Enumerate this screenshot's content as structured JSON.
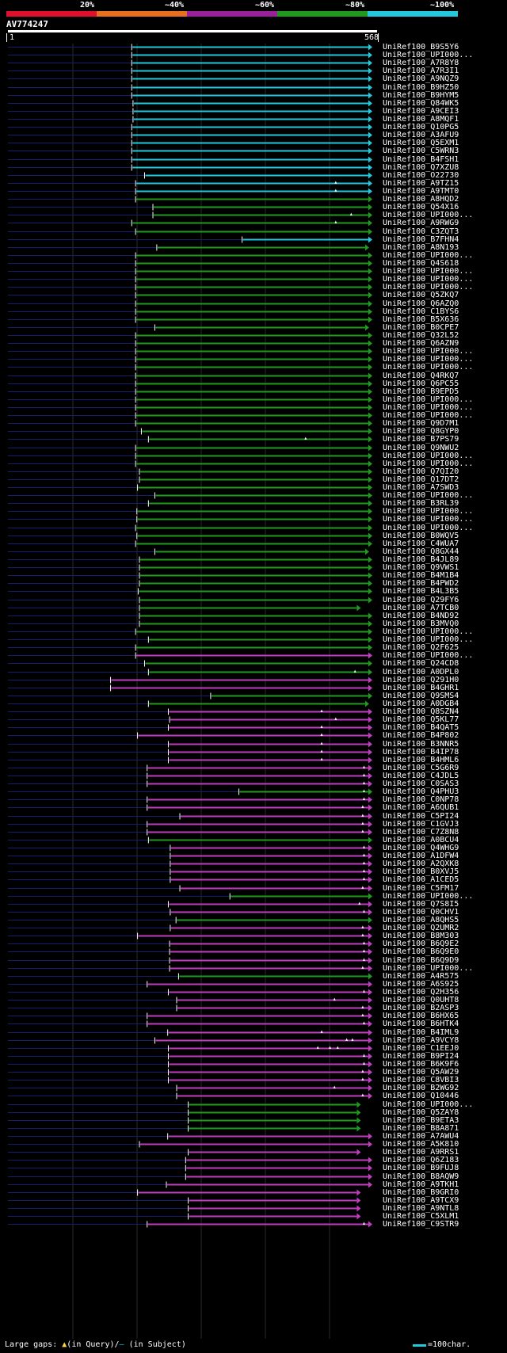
{
  "identity_scale": {
    "labels": [
      "20%",
      "~40%",
      "~60%",
      "~80%",
      "~100%"
    ],
    "colors": [
      "#e0102c",
      "#e77020",
      "#9a1f9a",
      "#1f9a1f",
      "#22c8dc"
    ]
  },
  "query": {
    "id": "AV774247",
    "start": "1",
    "end": "568",
    "length": 568
  },
  "legend": {
    "prefix": "Large gaps:",
    "in_query": "(in Query)/",
    "in_subject": "(in Subject)",
    "query_gap_marker": "▲",
    "subject_gap_marker": "—",
    "scale_text": "=100char."
  },
  "hits": [
    {
      "id": "UniRef100_B9S5Y6",
      "s": 193,
      "e": 568,
      "c": "cyan",
      "arrow": true
    },
    {
      "id": "UniRef100_UPI000...",
      "s": 193,
      "e": 568,
      "c": "cyan",
      "arrow": true
    },
    {
      "id": "UniRef100_A7R8Y8",
      "s": 193,
      "e": 568,
      "c": "cyan",
      "arrow": true
    },
    {
      "id": "UniRef100_A7R3I1",
      "s": 193,
      "e": 568,
      "c": "cyan",
      "arrow": true
    },
    {
      "id": "UniRef100_A9NQZ9",
      "s": 193,
      "e": 568,
      "c": "cyan",
      "arrow": true
    },
    {
      "id": "UniRef100_B9HZ50",
      "s": 193,
      "e": 568,
      "c": "cyan",
      "arrow": true
    },
    {
      "id": "UniRef100_B9HYM5",
      "s": 193,
      "e": 568,
      "c": "cyan",
      "arrow": true
    },
    {
      "id": "UniRef100_Q84WK5",
      "s": 195,
      "e": 568,
      "c": "cyan",
      "arrow": true
    },
    {
      "id": "UniRef100_A9CEI3",
      "s": 195,
      "e": 568,
      "c": "cyan",
      "arrow": true
    },
    {
      "id": "UniRef100_A8MQF1",
      "s": 195,
      "e": 568,
      "c": "cyan",
      "arrow": true
    },
    {
      "id": "UniRef100_Q10PG5",
      "s": 193,
      "e": 568,
      "c": "cyan",
      "arrow": true
    },
    {
      "id": "UniRef100_A3AFU9",
      "s": 193,
      "e": 568,
      "c": "cyan",
      "arrow": true
    },
    {
      "id": "UniRef100_Q5EXM1",
      "s": 193,
      "e": 568,
      "c": "cyan",
      "arrow": true
    },
    {
      "id": "UniRef100_C5WRN3",
      "s": 193,
      "e": 568,
      "c": "cyan",
      "arrow": true
    },
    {
      "id": "UniRef100_B4FSH1",
      "s": 193,
      "e": 568,
      "c": "cyan",
      "arrow": true
    },
    {
      "id": "UniRef100_Q7XZU8",
      "s": 193,
      "e": 568,
      "c": "cyan",
      "arrow": true
    },
    {
      "id": "UniRef100_O22730",
      "s": 213,
      "e": 568,
      "c": "cyan",
      "arrow": true
    },
    {
      "id": "UniRef100_A9TZ15",
      "s": 199,
      "e": 568,
      "c": "cyan",
      "arrow": true,
      "gaps": [
        511
      ]
    },
    {
      "id": "UniRef100_A9TMT0",
      "s": 199,
      "e": 568,
      "c": "cyan",
      "arrow": true,
      "gaps": [
        511
      ]
    },
    {
      "id": "UniRef100_A8HQD2",
      "s": 199,
      "e": 568,
      "c": "green",
      "arrow": true
    },
    {
      "id": "UniRef100_Q54X16",
      "s": 226,
      "e": 568,
      "c": "green",
      "arrow": true
    },
    {
      "id": "UniRef100_UPI000...",
      "s": 226,
      "e": 568,
      "c": "green",
      "arrow": true,
      "gaps": [
        535
      ]
    },
    {
      "id": "UniRef100_A9RWG9",
      "s": 193,
      "e": 568,
      "c": "green",
      "arrow": true,
      "gaps": [
        511
      ]
    },
    {
      "id": "UniRef100_C3ZQT3",
      "s": 199,
      "e": 568,
      "c": "green",
      "arrow": true
    },
    {
      "id": "UniRef100_B7FHN4",
      "s": 365,
      "e": 568,
      "c": "cyan",
      "arrow": true
    },
    {
      "id": "UniRef100_A8N193",
      "s": 232,
      "e": 563,
      "c": "green",
      "arrow": true
    },
    {
      "id": "UniRef100_UPI000...",
      "s": 199,
      "e": 568,
      "c": "green",
      "arrow": true
    },
    {
      "id": "UniRef100_Q4S618",
      "s": 199,
      "e": 568,
      "c": "green",
      "arrow": true
    },
    {
      "id": "UniRef100_UPI000...",
      "s": 199,
      "e": 568,
      "c": "green",
      "arrow": true
    },
    {
      "id": "UniRef100_UPI000...",
      "s": 199,
      "e": 568,
      "c": "green",
      "arrow": true
    },
    {
      "id": "UniRef100_UPI000...",
      "s": 199,
      "e": 568,
      "c": "green",
      "arrow": true
    },
    {
      "id": "UniRef100_Q5ZKQ7",
      "s": 199,
      "e": 568,
      "c": "green",
      "arrow": true
    },
    {
      "id": "UniRef100_Q6AZQ0",
      "s": 199,
      "e": 568,
      "c": "green",
      "arrow": true
    },
    {
      "id": "UniRef100_C1BYS6",
      "s": 199,
      "e": 568,
      "c": "green",
      "arrow": true
    },
    {
      "id": "UniRef100_B5X636",
      "s": 199,
      "e": 568,
      "c": "green",
      "arrow": true
    },
    {
      "id": "UniRef100_B0CPE7",
      "s": 229,
      "e": 563,
      "c": "green",
      "arrow": true
    },
    {
      "id": "UniRef100_Q32L52",
      "s": 199,
      "e": 568,
      "c": "green",
      "arrow": true
    },
    {
      "id": "UniRef100_Q6AZN9",
      "s": 199,
      "e": 568,
      "c": "green",
      "arrow": true
    },
    {
      "id": "UniRef100_UPI000...",
      "s": 199,
      "e": 568,
      "c": "green",
      "arrow": true
    },
    {
      "id": "UniRef100_UPI000...",
      "s": 199,
      "e": 568,
      "c": "green",
      "arrow": true
    },
    {
      "id": "UniRef100_UPI000...",
      "s": 199,
      "e": 568,
      "c": "green",
      "arrow": true
    },
    {
      "id": "UniRef100_Q4RKQ7",
      "s": 199,
      "e": 568,
      "c": "green",
      "arrow": true
    },
    {
      "id": "UniRef100_Q6PC55",
      "s": 199,
      "e": 568,
      "c": "green",
      "arrow": true
    },
    {
      "id": "UniRef100_B9EPD5",
      "s": 199,
      "e": 568,
      "c": "green",
      "arrow": true
    },
    {
      "id": "UniRef100_UPI000...",
      "s": 199,
      "e": 568,
      "c": "green",
      "arrow": true
    },
    {
      "id": "UniRef100_UPI000...",
      "s": 199,
      "e": 568,
      "c": "green",
      "arrow": true
    },
    {
      "id": "UniRef100_UPI000...",
      "s": 199,
      "e": 568,
      "c": "green",
      "arrow": true
    },
    {
      "id": "UniRef100_Q9D7M1",
      "s": 199,
      "e": 568,
      "c": "green",
      "arrow": true
    },
    {
      "id": "UniRef100_Q8GYP0",
      "s": 208,
      "e": 568,
      "c": "green",
      "arrow": true
    },
    {
      "id": "UniRef100_B7PS79",
      "s": 219,
      "e": 568,
      "c": "green",
      "arrow": true,
      "gaps": [
        464
      ]
    },
    {
      "id": "UniRef100_Q9NWU2",
      "s": 199,
      "e": 568,
      "c": "green",
      "arrow": true
    },
    {
      "id": "UniRef100_UPI000...",
      "s": 199,
      "e": 568,
      "c": "green",
      "arrow": true
    },
    {
      "id": "UniRef100_UPI000...",
      "s": 199,
      "e": 568,
      "c": "green",
      "arrow": true
    },
    {
      "id": "UniRef100_Q7QI20",
      "s": 205,
      "e": 568,
      "c": "green",
      "arrow": true
    },
    {
      "id": "UniRef100_Q17DT2",
      "s": 205,
      "e": 568,
      "c": "green",
      "arrow": true
    },
    {
      "id": "UniRef100_A7SWD3",
      "s": 202,
      "e": 568,
      "c": "green",
      "arrow": true
    },
    {
      "id": "UniRef100_UPI000...",
      "s": 229,
      "e": 568,
      "c": "green",
      "arrow": true
    },
    {
      "id": "UniRef100_B3RL39",
      "s": 219,
      "e": 568,
      "c": "green",
      "arrow": true
    },
    {
      "id": "UniRef100_UPI000...",
      "s": 201,
      "e": 568,
      "c": "green",
      "arrow": true
    },
    {
      "id": "UniRef100_UPI000...",
      "s": 201,
      "e": 568,
      "c": "green",
      "arrow": true
    },
    {
      "id": "UniRef100_UPI000...",
      "s": 199,
      "e": 568,
      "c": "green",
      "arrow": true
    },
    {
      "id": "UniRef100_B0WQV5",
      "s": 201,
      "e": 568,
      "c": "green",
      "arrow": true
    },
    {
      "id": "UniRef100_C4WUA7",
      "s": 199,
      "e": 568,
      "c": "green",
      "arrow": true
    },
    {
      "id": "UniRef100_Q8GX44",
      "s": 229,
      "e": 563,
      "c": "green",
      "arrow": true
    },
    {
      "id": "UniRef100_B4JL89",
      "s": 205,
      "e": 568,
      "c": "green",
      "arrow": true
    },
    {
      "id": "UniRef100_Q9VWS1",
      "s": 205,
      "e": 568,
      "c": "green",
      "arrow": true
    },
    {
      "id": "UniRef100_B4M1B4",
      "s": 205,
      "e": 568,
      "c": "green",
      "arrow": true
    },
    {
      "id": "UniRef100_B4PWD2",
      "s": 205,
      "e": 568,
      "c": "green",
      "arrow": true
    },
    {
      "id": "UniRef100_B4L3B5",
      "s": 203,
      "e": 568,
      "c": "green",
      "arrow": true
    },
    {
      "id": "UniRef100_Q29FY6",
      "s": 205,
      "e": 568,
      "c": "green",
      "arrow": true
    },
    {
      "id": "UniRef100_A7TCB0",
      "s": 205,
      "e": 550,
      "c": "green",
      "arrow": true
    },
    {
      "id": "UniRef100_B4ND92",
      "s": 205,
      "e": 568,
      "c": "green",
      "arrow": true
    },
    {
      "id": "UniRef100_B3MVQ0",
      "s": 205,
      "e": 568,
      "c": "green",
      "arrow": true
    },
    {
      "id": "UniRef100_UPI000...",
      "s": 199,
      "e": 568,
      "c": "green",
      "arrow": true
    },
    {
      "id": "UniRef100_UPI000...",
      "s": 219,
      "e": 568,
      "c": "green",
      "arrow": true
    },
    {
      "id": "UniRef100_Q2F625",
      "s": 199,
      "e": 568,
      "c": "green",
      "arrow": true
    },
    {
      "id": "UniRef100_UPI000...",
      "s": 199,
      "e": 568,
      "c": "magenta",
      "arrow": true
    },
    {
      "id": "UniRef100_Q24CD8",
      "s": 213,
      "e": 568,
      "c": "green",
      "arrow": true
    },
    {
      "id": "UniRef100_A0DPL0",
      "s": 219,
      "e": 568,
      "c": "green",
      "arrow": true,
      "gaps": [
        541
      ]
    },
    {
      "id": "UniRef100_Q291H0",
      "s": 160,
      "e": 568,
      "c": "magenta",
      "arrow": true
    },
    {
      "id": "UniRef100_B4GHR1",
      "s": 160,
      "e": 568,
      "c": "magenta",
      "arrow": true
    },
    {
      "id": "UniRef100_Q9SMS4",
      "s": 316,
      "e": 568,
      "c": "green",
      "arrow": true
    },
    {
      "id": "UniRef100_A0DGB4",
      "s": 219,
      "e": 563,
      "c": "green",
      "arrow": true
    },
    {
      "id": "UniRef100_Q8SZN4",
      "s": 250,
      "e": 568,
      "c": "magenta",
      "arrow": true,
      "gaps": [
        489
      ]
    },
    {
      "id": "UniRef100_Q5KL77",
      "s": 252,
      "e": 568,
      "c": "magenta",
      "arrow": true,
      "gaps": [
        511
      ]
    },
    {
      "id": "UniRef100_B4QAT5",
      "s": 250,
      "e": 568,
      "c": "magenta",
      "arrow": true,
      "gaps": [
        489
      ]
    },
    {
      "id": "UniRef100_B4P802",
      "s": 202,
      "e": 568,
      "c": "magenta",
      "arrow": true,
      "gaps": [
        489
      ]
    },
    {
      "id": "UniRef100_B3NNR5",
      "s": 250,
      "e": 568,
      "c": "magenta",
      "arrow": true,
      "gaps": [
        489
      ]
    },
    {
      "id": "UniRef100_B4IP78",
      "s": 250,
      "e": 568,
      "c": "magenta",
      "arrow": true,
      "gaps": [
        489
      ]
    },
    {
      "id": "UniRef100_B4HML6",
      "s": 250,
      "e": 568,
      "c": "magenta",
      "arrow": true,
      "gaps": [
        489
      ]
    },
    {
      "id": "UniRef100_C5G6R9",
      "s": 217,
      "e": 568,
      "c": "magenta",
      "arrow": true,
      "gaps": [
        555
      ]
    },
    {
      "id": "UniRef100_C4JDL5",
      "s": 217,
      "e": 568,
      "c": "magenta",
      "arrow": true,
      "gaps": [
        555
      ]
    },
    {
      "id": "UniRef100_C0SAS3",
      "s": 217,
      "e": 568,
      "c": "magenta",
      "arrow": true,
      "gaps": [
        555
      ]
    },
    {
      "id": "UniRef100_Q4PHU3",
      "s": 360,
      "e": 568,
      "c": "green",
      "arrow": true,
      "gaps": [
        555
      ]
    },
    {
      "id": "UniRef100_C0NP78",
      "s": 217,
      "e": 568,
      "c": "magenta",
      "arrow": true,
      "gaps": [
        555
      ]
    },
    {
      "id": "UniRef100_A6QUB1",
      "s": 217,
      "e": 568,
      "c": "magenta",
      "arrow": true,
      "gaps": [
        553
      ]
    },
    {
      "id": "UniRef100_C5PI24",
      "s": 268,
      "e": 568,
      "c": "magenta",
      "arrow": true,
      "gaps": [
        553
      ]
    },
    {
      "id": "UniRef100_C1GVJ3",
      "s": 217,
      "e": 568,
      "c": "magenta",
      "arrow": true,
      "gaps": [
        553
      ]
    },
    {
      "id": "UniRef100_C7Z8N8",
      "s": 217,
      "e": 568,
      "c": "magenta",
      "arrow": true,
      "gaps": [
        553
      ]
    },
    {
      "id": "UniRef100_A0BCU4",
      "s": 219,
      "e": 568,
      "c": "green",
      "arrow": true
    },
    {
      "id": "UniRef100_Q4WHG9",
      "s": 253,
      "e": 568,
      "c": "magenta",
      "arrow": true,
      "gaps": [
        555
      ]
    },
    {
      "id": "UniRef100_A1DFW4",
      "s": 253,
      "e": 568,
      "c": "magenta",
      "arrow": true,
      "gaps": [
        555
      ]
    },
    {
      "id": "UniRef100_A2QXK8",
      "s": 253,
      "e": 568,
      "c": "magenta",
      "arrow": true,
      "gaps": [
        555
      ]
    },
    {
      "id": "UniRef100_B0XVJ5",
      "s": 253,
      "e": 568,
      "c": "magenta",
      "arrow": true,
      "gaps": [
        555
      ]
    },
    {
      "id": "UniRef100_A1CED5",
      "s": 253,
      "e": 568,
      "c": "magenta",
      "arrow": true,
      "gaps": [
        555
      ]
    },
    {
      "id": "UniRef100_C5FM17",
      "s": 268,
      "e": 568,
      "c": "magenta",
      "arrow": true,
      "gaps": [
        553
      ]
    },
    {
      "id": "UniRef100_UPI000...",
      "s": 346,
      "e": 568,
      "c": "green",
      "arrow": true
    },
    {
      "id": "UniRef100_Q7S8I5",
      "s": 250,
      "e": 568,
      "c": "magenta",
      "arrow": true,
      "gaps": [
        548
      ]
    },
    {
      "id": "UniRef100_Q0CHV1",
      "s": 253,
      "e": 568,
      "c": "magenta",
      "arrow": true,
      "gaps": [
        555
      ]
    },
    {
      "id": "UniRef100_A8QHS5",
      "s": 262,
      "e": 568,
      "c": "green",
      "arrow": true
    },
    {
      "id": "UniRef100_Q2UMR2",
      "s": 253,
      "e": 568,
      "c": "magenta",
      "arrow": true,
      "gaps": [
        553
      ]
    },
    {
      "id": "UniRef100_B8M303",
      "s": 202,
      "e": 568,
      "c": "magenta",
      "arrow": true,
      "gaps": [
        553
      ]
    },
    {
      "id": "UniRef100_B6Q9E2",
      "s": 252,
      "e": 568,
      "c": "magenta",
      "arrow": true,
      "gaps": [
        555
      ]
    },
    {
      "id": "UniRef100_B6Q9E0",
      "s": 252,
      "e": 568,
      "c": "magenta",
      "arrow": true,
      "gaps": [
        555
      ]
    },
    {
      "id": "UniRef100_B6Q9D9",
      "s": 252,
      "e": 568,
      "c": "magenta",
      "arrow": true,
      "gaps": [
        555
      ]
    },
    {
      "id": "UniRef100_UPI000...",
      "s": 252,
      "e": 568,
      "c": "magenta",
      "arrow": true,
      "gaps": [
        553
      ]
    },
    {
      "id": "UniRef100_A4R575",
      "s": 266,
      "e": 568,
      "c": "green",
      "arrow": true
    },
    {
      "id": "UniRef100_A6S925",
      "s": 217,
      "e": 568,
      "c": "magenta",
      "arrow": true
    },
    {
      "id": "UniRef100_Q2H356",
      "s": 250,
      "e": 568,
      "c": "magenta",
      "arrow": true,
      "gaps": [
        555
      ]
    },
    {
      "id": "UniRef100_Q0UHT8",
      "s": 263,
      "e": 568,
      "c": "magenta",
      "arrow": true,
      "gaps": [
        509
      ]
    },
    {
      "id": "UniRef100_B2ASP3",
      "s": 263,
      "e": 568,
      "c": "magenta",
      "arrow": true,
      "gaps": [
        553
      ]
    },
    {
      "id": "UniRef100_B6HX65",
      "s": 217,
      "e": 568,
      "c": "magenta",
      "arrow": true,
      "gaps": [
        553
      ]
    },
    {
      "id": "UniRef100_B6HTK4",
      "s": 217,
      "e": 568,
      "c": "magenta",
      "arrow": true,
      "gaps": [
        555
      ]
    },
    {
      "id": "UniRef100_B4IML9",
      "s": 249,
      "e": 568,
      "c": "magenta",
      "arrow": true,
      "gaps": [
        489
      ]
    },
    {
      "id": "UniRef100_A9VCY8",
      "s": 229,
      "e": 568,
      "c": "magenta",
      "arrow": true,
      "gaps": [
        528,
        537
      ]
    },
    {
      "id": "UniRef100_C1EEJ0",
      "s": 250,
      "e": 568,
      "c": "magenta",
      "arrow": true,
      "gaps": [
        483,
        502,
        514
      ]
    },
    {
      "id": "UniRef100_B9PI24",
      "s": 250,
      "e": 568,
      "c": "magenta",
      "arrow": true,
      "gaps": [
        555
      ]
    },
    {
      "id": "UniRef100_B6K9F6",
      "s": 250,
      "e": 568,
      "c": "magenta",
      "arrow": true,
      "gaps": [
        555
      ]
    },
    {
      "id": "UniRef100_Q5AW29",
      "s": 250,
      "e": 568,
      "c": "magenta",
      "arrow": true,
      "gaps": [
        553
      ]
    },
    {
      "id": "UniRef100_C8VBI3",
      "s": 250,
      "e": 568,
      "c": "magenta",
      "arrow": true,
      "gaps": [
        553
      ]
    },
    {
      "id": "UniRef100_B2WG92",
      "s": 263,
      "e": 568,
      "c": "magenta",
      "arrow": true,
      "gaps": [
        509
      ]
    },
    {
      "id": "UniRef100_Q10446",
      "s": 263,
      "e": 568,
      "c": "magenta",
      "arrow": true,
      "gaps": [
        553
      ]
    },
    {
      "id": "UniRef100_UPI000...",
      "s": 281,
      "e": 550,
      "c": "green",
      "arrow": true
    },
    {
      "id": "UniRef100_Q5ZAY8",
      "s": 281,
      "e": 550,
      "c": "green",
      "arrow": true
    },
    {
      "id": "UniRef100_B9ETA3",
      "s": 281,
      "e": 550,
      "c": "green",
      "arrow": true
    },
    {
      "id": "UniRef100_B8A871",
      "s": 281,
      "e": 550,
      "c": "green",
      "arrow": true
    },
    {
      "id": "UniRef100_A7AWU4",
      "s": 249,
      "e": 568,
      "c": "magenta",
      "arrow": true
    },
    {
      "id": "UniRef100_A5K810",
      "s": 205,
      "e": 568,
      "c": "magenta",
      "arrow": true
    },
    {
      "id": "UniRef100_A9RRS1",
      "s": 281,
      "e": 550,
      "c": "magenta",
      "arrow": true
    },
    {
      "id": "UniRef100_Q6Z183",
      "s": 277,
      "e": 568,
      "c": "magenta",
      "arrow": true
    },
    {
      "id": "UniRef100_B9FUJ8",
      "s": 277,
      "e": 568,
      "c": "magenta",
      "arrow": true
    },
    {
      "id": "UniRef100_B8AQW9",
      "s": 277,
      "e": 568,
      "c": "magenta",
      "arrow": true
    },
    {
      "id": "UniRef100_A9TKH1",
      "s": 247,
      "e": 568,
      "c": "magenta",
      "arrow": true
    },
    {
      "id": "UniRef100_B9GRI0",
      "s": 202,
      "e": 550,
      "c": "magenta",
      "arrow": true
    },
    {
      "id": "UniRef100_A9TCX9",
      "s": 281,
      "e": 550,
      "c": "magenta",
      "arrow": true
    },
    {
      "id": "UniRef100_A9NTL8",
      "s": 281,
      "e": 550,
      "c": "magenta",
      "arrow": true
    },
    {
      "id": "UniRef100_C5XLM1",
      "s": 281,
      "e": 550,
      "c": "magenta",
      "arrow": true
    },
    {
      "id": "UniRef100_C9STR9",
      "s": 217,
      "e": 568,
      "c": "magenta",
      "arrow": true,
      "gaps": [
        555
      ]
    }
  ]
}
